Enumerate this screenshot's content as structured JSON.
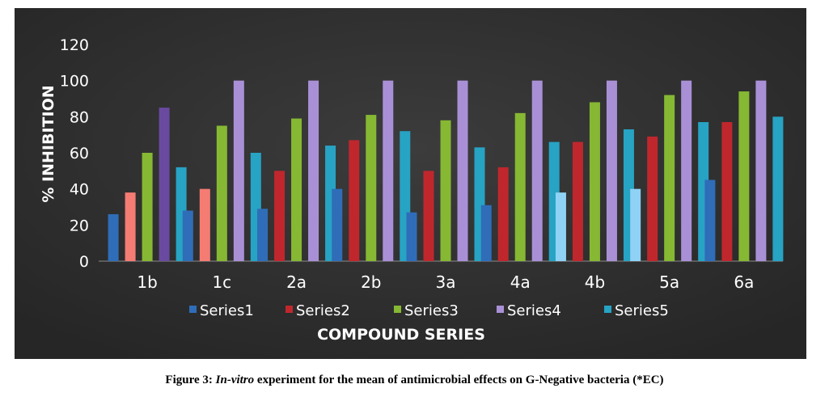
{
  "chart_data": {
    "type": "bar",
    "categories": [
      "1b",
      "1c",
      "2a",
      "2b",
      "3a",
      "4a",
      "4b",
      "5a",
      "6a"
    ],
    "series": [
      {
        "name": "Series1",
        "color": "#2f6db8",
        "values": [
          26,
          28,
          29,
          40,
          27,
          31,
          38,
          40,
          45
        ]
      },
      {
        "name": "Series2",
        "color": "#c0272d",
        "values": [
          38,
          40,
          50,
          67,
          50,
          52,
          66,
          69,
          77
        ]
      },
      {
        "name": "Series3",
        "color": "#86b833",
        "values": [
          60,
          75,
          79,
          81,
          78,
          82,
          88,
          92,
          94
        ]
      },
      {
        "name": "Series4",
        "color": "#a990d6",
        "values": [
          85,
          100,
          100,
          100,
          100,
          100,
          100,
          100,
          100
        ]
      },
      {
        "name": "Series5",
        "color": "#27a3c4",
        "values": [
          52,
          60,
          64,
          72,
          63,
          66,
          73,
          77,
          80
        ]
      }
    ],
    "highlighted_bars": [
      {
        "series": 1,
        "category": 0,
        "color": "#f47c73"
      },
      {
        "series": 1,
        "category": 1,
        "color": "#f47c73"
      },
      {
        "series": 0,
        "category": 6,
        "color": "#8fd2f5"
      },
      {
        "series": 0,
        "category": 7,
        "color": "#8fd2f5"
      },
      {
        "series": 3,
        "category": 0,
        "color": "#6a4aa0"
      }
    ],
    "title": "",
    "xlabel": "COMPOUND SERIES",
    "ylabel": "% INHIBITION",
    "ylim": [
      0,
      120
    ],
    "yticks": [
      0,
      20,
      40,
      60,
      80,
      100,
      120
    ],
    "grid": false,
    "legend_position": "bottom",
    "background_color": "#2d2d2d"
  },
  "caption": {
    "prefix": "Figure 3: ",
    "italic": "In-vitro",
    "rest": " experiment for the mean of antimicrobial effects on G-Negative bacteria (*EC)"
  }
}
